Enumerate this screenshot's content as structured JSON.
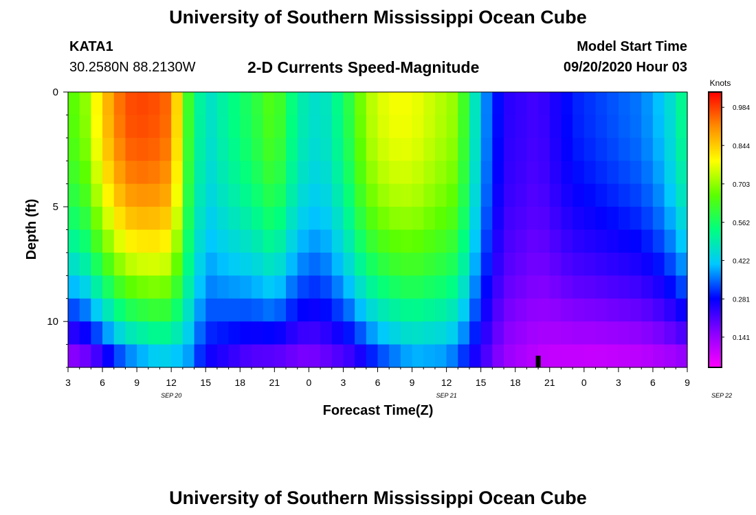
{
  "header": {
    "title": "University of Southern Mississippi Ocean Cube",
    "station": "KATA1",
    "coords": "30.2580N 88.2130W",
    "subtitle": "2-D Currents Speed-Magnitude",
    "model_label": "Model Start Time",
    "model_time": "09/20/2020 Hour 03"
  },
  "footer": {
    "title": "University of Southern Mississippi Ocean Cube"
  },
  "chart_data": {
    "type": "heatmap",
    "title": "2-D Currents Speed-Magnitude",
    "xlabel": "Forecast Time(Z)",
    "ylabel": "Depth (ft)",
    "x_range_hours": [
      0,
      54
    ],
    "x_start_hour_z": 3,
    "x_tick_labels": [
      "3",
      "6",
      "9",
      "12",
      "15",
      "18",
      "21",
      "0",
      "3",
      "6",
      "9",
      "12",
      "15",
      "18",
      "21",
      "0",
      "3",
      "6",
      "9"
    ],
    "date_labels": [
      {
        "label": "SEP 20",
        "hour": 9
      },
      {
        "label": "SEP 21",
        "hour": 33
      },
      {
        "label": "SEP 22",
        "hour": 57
      }
    ],
    "y_range_ft": [
      0,
      12
    ],
    "y_tick_labels": [
      "0",
      "5",
      "10"
    ],
    "y_reversed": true,
    "colorbar": {
      "units": "Knots",
      "range": [
        0.03,
        1.04
      ],
      "tick_labels": [
        "0.984",
        "0.844",
        "0.703",
        "0.562",
        "0.422",
        "0.281",
        "0.141"
      ],
      "tick_values": [
        0.984,
        0.844,
        0.703,
        0.562,
        0.422,
        0.281,
        0.141
      ],
      "colors": [
        "#ff00ff",
        "#8a00ff",
        "#0000ff",
        "#00c8ff",
        "#00ff80",
        "#5aff00",
        "#ffff00",
        "#ff8c00",
        "#ff0000"
      ]
    },
    "time_marker_hour": 41,
    "surface_speed_knots": [
      {
        "hour": 0,
        "v": 0.64
      },
      {
        "hour": 1.5,
        "v": 0.7
      },
      {
        "hour": 3,
        "v": 0.84
      },
      {
        "hour": 5,
        "v": 0.97
      },
      {
        "hour": 7,
        "v": 0.98
      },
      {
        "hour": 9,
        "v": 0.94
      },
      {
        "hour": 10.5,
        "v": 0.62
      },
      {
        "hour": 12,
        "v": 0.45
      },
      {
        "hour": 14,
        "v": 0.52
      },
      {
        "hour": 16,
        "v": 0.58
      },
      {
        "hour": 18,
        "v": 0.66
      },
      {
        "hour": 20,
        "v": 0.5
      },
      {
        "hour": 22,
        "v": 0.45
      },
      {
        "hour": 24,
        "v": 0.55
      },
      {
        "hour": 26,
        "v": 0.72
      },
      {
        "hour": 28,
        "v": 0.78
      },
      {
        "hour": 30,
        "v": 0.78
      },
      {
        "hour": 32,
        "v": 0.74
      },
      {
        "hour": 34,
        "v": 0.7
      },
      {
        "hour": 36,
        "v": 0.4
      },
      {
        "hour": 38,
        "v": 0.25
      },
      {
        "hour": 41,
        "v": 0.22
      },
      {
        "hour": 44,
        "v": 0.3
      },
      {
        "hour": 47,
        "v": 0.33
      },
      {
        "hour": 50,
        "v": 0.36
      },
      {
        "hour": 52,
        "v": 0.42
      },
      {
        "hour": 54,
        "v": 0.55
      }
    ],
    "bottom_speed_knots": [
      {
        "hour": 0,
        "v": 0.1
      },
      {
        "hour": 2,
        "v": 0.14
      },
      {
        "hour": 5,
        "v": 0.3
      },
      {
        "hour": 8,
        "v": 0.38
      },
      {
        "hour": 10.5,
        "v": 0.36
      },
      {
        "hour": 12,
        "v": 0.26
      },
      {
        "hour": 16,
        "v": 0.17
      },
      {
        "hour": 21,
        "v": 0.14
      },
      {
        "hour": 23,
        "v": 0.17
      },
      {
        "hour": 25,
        "v": 0.2
      },
      {
        "hour": 27,
        "v": 0.28
      },
      {
        "hour": 30,
        "v": 0.36
      },
      {
        "hour": 33,
        "v": 0.35
      },
      {
        "hour": 36,
        "v": 0.22
      },
      {
        "hour": 38,
        "v": 0.13
      },
      {
        "hour": 42,
        "v": 0.08
      },
      {
        "hour": 46,
        "v": 0.07
      },
      {
        "hour": 50,
        "v": 0.08
      },
      {
        "hour": 54,
        "v": 0.11
      }
    ]
  }
}
